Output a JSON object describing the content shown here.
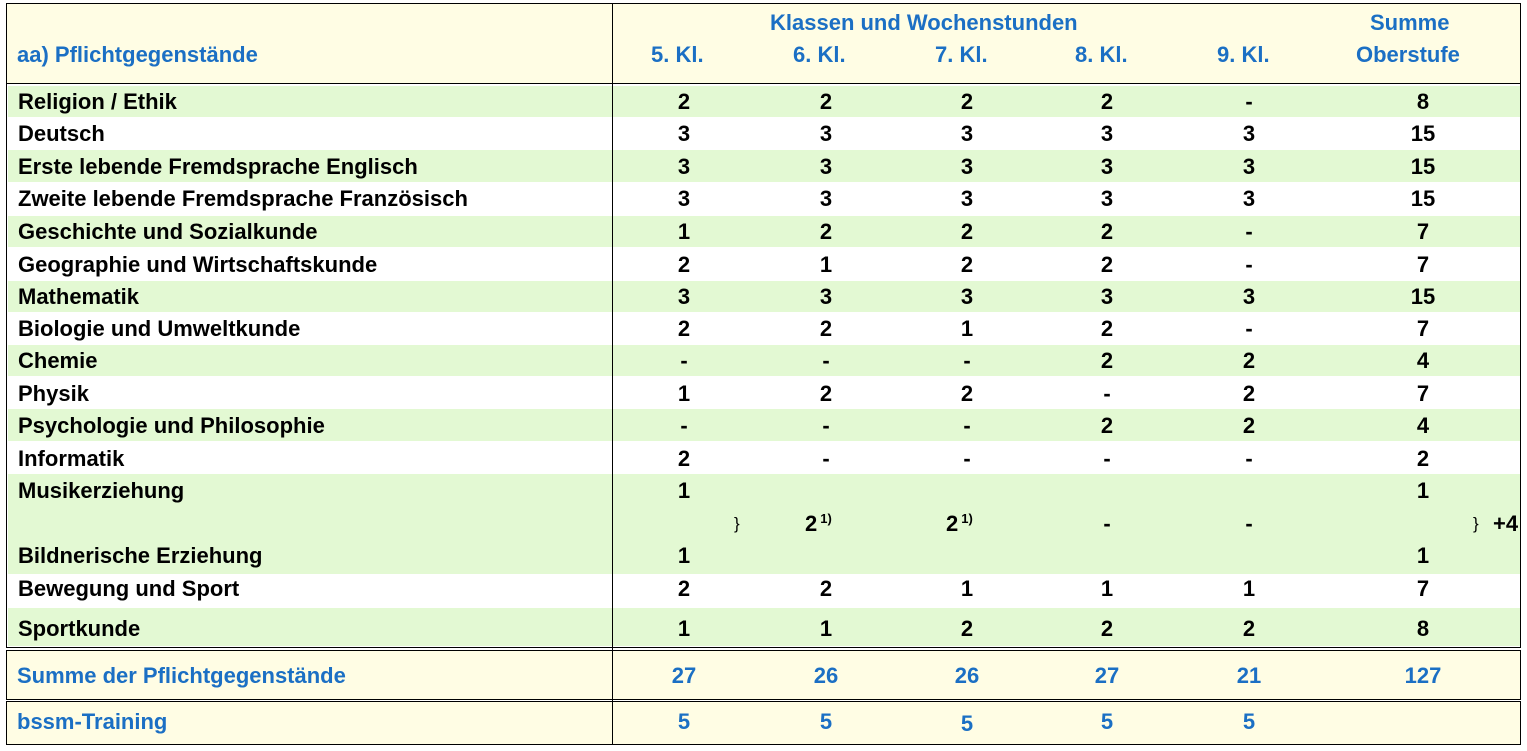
{
  "colors": {
    "header_text": "#1b6fc4",
    "band_background": "#fffde4",
    "stripe_background": "#e3f9d3"
  },
  "header": {
    "section_title": "aa) Pflichtgegenstände",
    "group_title": "Klassen und Wochenstunden",
    "columns": [
      "5. Kl.",
      "6. Kl.",
      "7. Kl.",
      "8. Kl.",
      "9. Kl."
    ],
    "sum_line1": "Summe",
    "sum_line2": "Oberstufe"
  },
  "rows": [
    {
      "subject": "Religion / Ethik",
      "values": [
        "2",
        "2",
        "2",
        "2",
        "-"
      ],
      "sum": "8"
    },
    {
      "subject": "Deutsch",
      "values": [
        "3",
        "3",
        "3",
        "3",
        "3"
      ],
      "sum": "15"
    },
    {
      "subject": "Erste lebende Fremdsprache Englisch",
      "values": [
        "3",
        "3",
        "3",
        "3",
        "3"
      ],
      "sum": "15"
    },
    {
      "subject": "Zweite lebende Fremdsprache Französisch",
      "values": [
        "3",
        "3",
        "3",
        "3",
        "3"
      ],
      "sum": "15"
    },
    {
      "subject": "Geschichte und Sozialkunde",
      "values": [
        "1",
        "2",
        "2",
        "2",
        "-"
      ],
      "sum": "7"
    },
    {
      "subject": "Geographie und Wirtschaftskunde",
      "values": [
        "2",
        "1",
        "2",
        "2",
        "-"
      ],
      "sum": "7"
    },
    {
      "subject": "Mathematik",
      "values": [
        "3",
        "3",
        "3",
        "3",
        "3"
      ],
      "sum": "15"
    },
    {
      "subject": "Biologie und Umweltkunde",
      "values": [
        "2",
        "2",
        "1",
        "2",
        "-"
      ],
      "sum": "7"
    },
    {
      "subject": "Chemie",
      "values": [
        "-",
        "-",
        "-",
        "2",
        "2"
      ],
      "sum": "4"
    },
    {
      "subject": "Physik",
      "values": [
        "1",
        "2",
        "2",
        "-",
        "2"
      ],
      "sum": "7"
    },
    {
      "subject": "Psychologie und Philosophie",
      "values": [
        "-",
        "-",
        "-",
        "2",
        "2"
      ],
      "sum": "4"
    },
    {
      "subject": "Informatik",
      "values": [
        "2",
        "-",
        "-",
        "-",
        "-"
      ],
      "sum": "2"
    }
  ],
  "arts_block": {
    "music_subject": "Musikerziehung",
    "music_kl5": "1",
    "music_sum": "1",
    "brace_symbol": "}",
    "shared_values": [
      "2",
      "2",
      "-",
      "-"
    ],
    "footnote_mark": "1)",
    "extra_sum": "+4",
    "art_subject": "Bildnerische Erziehung",
    "art_kl5": "1",
    "art_sum": "1"
  },
  "rows_after": [
    {
      "subject": "Bewegung und Sport",
      "values": [
        "2",
        "2",
        "1",
        "1",
        "1"
      ],
      "sum": "7"
    },
    {
      "subject": "Sportkunde",
      "values": [
        "1",
        "1",
        "2",
        "2",
        "2"
      ],
      "sum": "8"
    }
  ],
  "total": {
    "label": "Summe der Pflichtgegenstände",
    "values": [
      "27",
      "26",
      "26",
      "27",
      "21"
    ],
    "sum": "127"
  },
  "training": {
    "label": "bssm-Training",
    "values": [
      "5",
      "5",
      "5",
      "5",
      "5"
    ]
  }
}
